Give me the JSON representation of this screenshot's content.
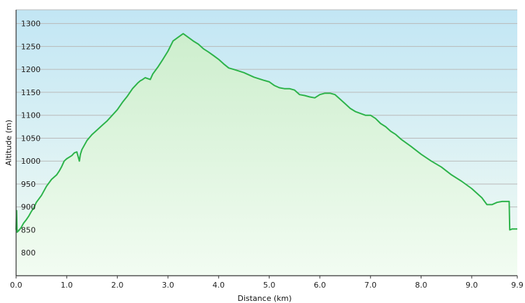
{
  "chart_data": {
    "type": "area",
    "title": "",
    "xlabel": "Distance  (km)",
    "ylabel": "Altitude (m)",
    "xlim": [
      0,
      9.9
    ],
    "ylim": [
      750,
      1330
    ],
    "grid": true,
    "legend": "none",
    "x_ticks": [
      0.0,
      1.0,
      2.0,
      3.0,
      4.0,
      5.0,
      6.0,
      7.0,
      8.0,
      9.0,
      9.9
    ],
    "x_tick_labels": [
      "0.0",
      "1.0",
      "2.0",
      "3.0",
      "4.0",
      "5.0",
      "6.0",
      "7.0",
      "8.0",
      "9.0",
      "9.9"
    ],
    "y_ticks": [
      800,
      850,
      900,
      950,
      1000,
      1050,
      1100,
      1150,
      1200,
      1250,
      1300
    ],
    "y_tick_labels": [
      "800",
      "850",
      "900",
      "950",
      "1000",
      "1050",
      "1100",
      "1150",
      "1200",
      "1250",
      "1300"
    ],
    "colors": {
      "line": "#2db34a",
      "fill_top": "#cdeecd",
      "fill_bottom": "#f2fcf2",
      "bg_top": "#c2e6f4",
      "bg_bottom": "#f3fbf3",
      "axis": "#333333"
    },
    "series": [
      {
        "x": [
          0.0,
          0.01,
          0.02,
          0.05,
          0.1,
          0.15,
          0.2,
          0.25,
          0.3,
          0.35,
          0.4,
          0.5,
          0.6,
          0.7,
          0.8,
          0.85,
          0.9,
          0.95,
          1.0,
          1.1,
          1.15,
          1.2,
          1.25,
          1.27,
          1.3,
          1.4,
          1.5,
          1.6,
          1.7,
          1.8,
          1.9,
          2.0,
          2.1,
          2.2,
          2.3,
          2.4,
          2.45,
          2.5,
          2.55,
          2.6,
          2.65,
          2.7,
          2.8,
          2.9,
          3.0,
          3.1,
          3.2,
          3.3,
          3.4,
          3.5,
          3.6,
          3.7,
          3.8,
          3.9,
          4.0,
          4.1,
          4.2,
          4.3,
          4.5,
          4.7,
          4.9,
          5.0,
          5.1,
          5.2,
          5.3,
          5.4,
          5.5,
          5.6,
          5.7,
          5.8,
          5.9,
          6.0,
          6.1,
          6.2,
          6.3,
          6.4,
          6.5,
          6.6,
          6.7,
          6.8,
          6.9,
          7.0,
          7.1,
          7.2,
          7.3,
          7.4,
          7.5,
          7.6,
          7.8,
          8.0,
          8.2,
          8.4,
          8.6,
          8.8,
          9.0,
          9.2,
          9.3,
          9.4,
          9.5,
          9.6,
          9.7,
          9.74,
          9.75,
          9.8,
          9.9
        ],
        "y": [
          850,
          892,
          845,
          848,
          855,
          865,
          872,
          880,
          890,
          898,
          910,
          925,
          945,
          960,
          970,
          978,
          988,
          1000,
          1005,
          1012,
          1018,
          1020,
          1000,
          1015,
          1025,
          1045,
          1058,
          1068,
          1078,
          1088,
          1100,
          1112,
          1128,
          1142,
          1158,
          1170,
          1175,
          1178,
          1182,
          1180,
          1178,
          1190,
          1205,
          1222,
          1240,
          1262,
          1270,
          1278,
          1270,
          1262,
          1255,
          1245,
          1238,
          1230,
          1222,
          1212,
          1203,
          1200,
          1193,
          1183,
          1176,
          1173,
          1165,
          1160,
          1158,
          1158,
          1155,
          1145,
          1143,
          1140,
          1138,
          1145,
          1148,
          1148,
          1145,
          1135,
          1125,
          1115,
          1108,
          1104,
          1100,
          1100,
          1093,
          1082,
          1075,
          1065,
          1058,
          1048,
          1032,
          1015,
          1000,
          987,
          970,
          956,
          940,
          920,
          905,
          905,
          910,
          912,
          912,
          912,
          850,
          852,
          852
        ]
      }
    ]
  }
}
